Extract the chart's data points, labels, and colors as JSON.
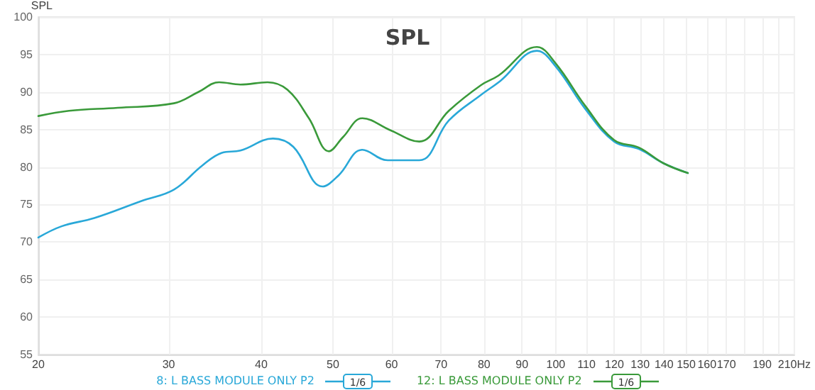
{
  "chart_data": {
    "type": "line",
    "title": "SPL",
    "ylabel": "SPL",
    "log": "x",
    "grid": true,
    "legend": "bottom",
    "marker": "none",
    "line_style": "solid",
    "xlim": [
      20,
      210
    ],
    "xticks": [
      20,
      30,
      40,
      50,
      60,
      70,
      80,
      90,
      100,
      110,
      120,
      130,
      140,
      150,
      160,
      170,
      {
        "value": 180,
        "label": null
      },
      190,
      {
        "value": 200,
        "label": null
      },
      {
        "value": 210,
        "label": "210Hz"
      }
    ],
    "ylim": [
      55,
      100
    ],
    "yticks": [
      55,
      60,
      65,
      70,
      75,
      80,
      85,
      90,
      95,
      100
    ],
    "annotations": [
      "1/6",
      "1/6"
    ],
    "series": [
      {
        "name": "8: L BASS MODULE ONLY P2",
        "color": "#29a8d8",
        "x": [
          20,
          21.5,
          23.8,
          27.6,
          30.5,
          33.3,
          35.4,
          37.5,
          41.5,
          44.2,
          48.4,
          50.9,
          54.8,
          59.3,
          65.4,
          71.7,
          79.2,
          84.2,
          94.3,
          100,
          109.7,
          119.9,
          129.5,
          139.8,
          150.8
        ],
        "values": [
          70.6,
          72.1,
          73.2,
          75.5,
          77.0,
          80.2,
          81.9,
          82.2,
          83.8,
          82.7,
          77.4,
          78.9,
          82.3,
          80.9,
          80.9,
          86.2,
          89.6,
          91.5,
          95.5,
          93.4,
          87.7,
          83.4,
          82.4,
          80.5,
          79.2
        ]
      },
      {
        "name": "12: L BASS MODULE ONLY P2",
        "color": "#3a9a3a",
        "x": [
          20,
          22,
          25.6,
          30.5,
          32.9,
          35.1,
          37.5,
          40.8,
          43.4,
          46.4,
          49.4,
          51.6,
          54.8,
          59.8,
          65.4,
          71.7,
          79.2,
          83.7,
          94.3,
          100,
          109.7,
          119.9,
          129.5,
          139.8,
          150.8
        ],
        "values": [
          86.8,
          87.5,
          87.9,
          88.5,
          90.0,
          91.3,
          91.0,
          91.3,
          90.3,
          86.5,
          82.1,
          84.0,
          86.5,
          84.9,
          83.4,
          87.5,
          90.9,
          92.2,
          96.0,
          93.8,
          88.1,
          83.6,
          82.6,
          80.5,
          79.2
        ]
      }
    ]
  }
}
